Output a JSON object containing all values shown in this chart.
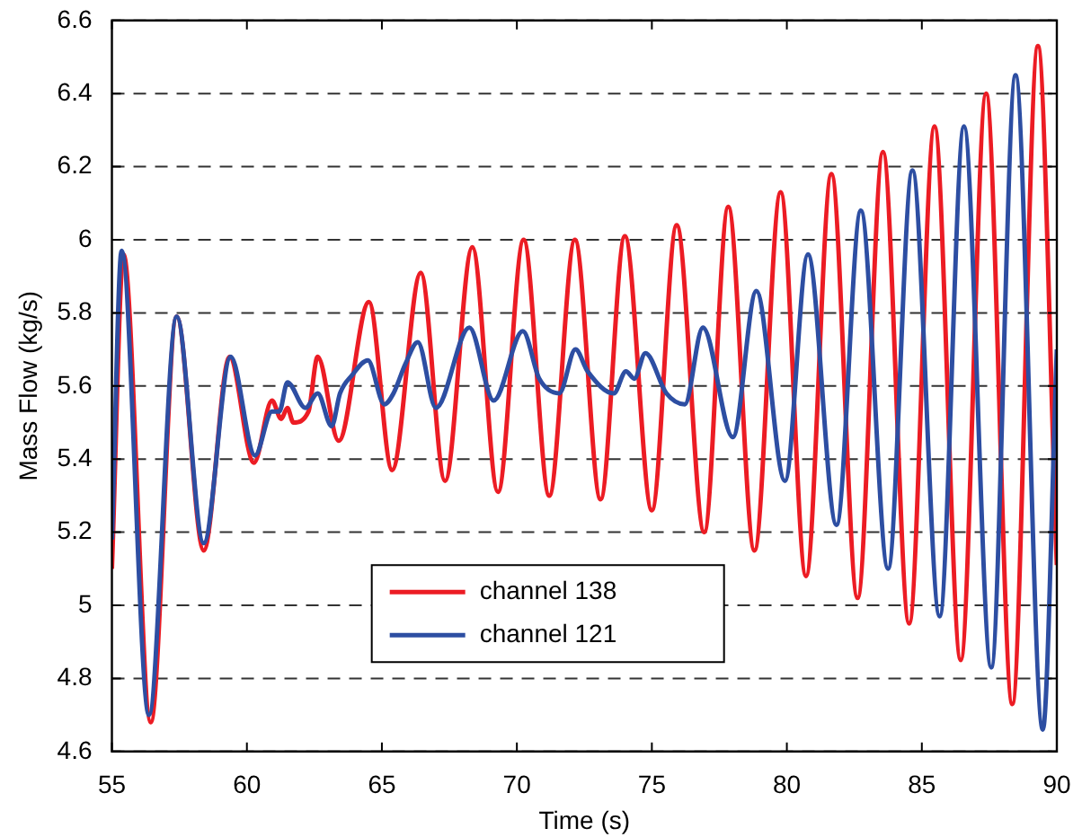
{
  "chart_data": {
    "type": "line",
    "xlabel": "Time (s)",
    "ylabel": "Mass Flow (kg/s)",
    "xlim": [
      55,
      90
    ],
    "xticks": [
      55,
      60,
      65,
      70,
      75,
      80,
      85,
      90
    ],
    "ylim": [
      4.6,
      6.6
    ],
    "yticks": [
      4.6,
      4.8,
      5,
      5.2,
      5.4,
      5.6,
      5.8,
      6,
      6.2,
      6.4,
      6.6
    ],
    "grid": "y",
    "legend": "bottom",
    "marker": "none",
    "line_style": "solid",
    "series": [
      {
        "name": "channel 138",
        "color": "#ec1c24",
        "x": [
          55,
          55.43,
          56.44,
          57.4,
          58.4,
          59.36,
          60.26,
          60.93,
          61.27,
          61.5,
          61.72,
          62.28,
          62.62,
          63.4,
          64.52,
          65.38,
          66.44,
          67.34,
          68.35,
          69.3,
          70.25,
          71.2,
          72.15,
          73.1,
          74.0,
          75.0,
          75.92,
          76.94,
          77.83,
          78.8,
          79.77,
          80.71,
          81.65,
          82.62,
          83.56,
          84.53,
          85.47,
          86.44,
          87.38,
          88.35,
          89.3,
          90
        ],
        "values": [
          5.1,
          5.96,
          4.68,
          5.79,
          5.15,
          5.68,
          5.39,
          5.56,
          5.51,
          5.54,
          5.5,
          5.53,
          5.68,
          5.45,
          5.83,
          5.37,
          5.91,
          5.34,
          5.98,
          5.31,
          6.0,
          5.3,
          6.0,
          5.29,
          6.01,
          5.26,
          6.04,
          5.2,
          6.09,
          5.15,
          6.13,
          5.08,
          6.18,
          5.02,
          6.24,
          4.95,
          6.31,
          4.85,
          6.4,
          4.73,
          6.53,
          5.11
        ]
      },
      {
        "name": "channel 121",
        "color": "#2d4ea2",
        "x": [
          55,
          55.36,
          56.37,
          57.4,
          58.4,
          59.4,
          60.3,
          60.93,
          61.2,
          61.5,
          62.17,
          62.62,
          63.14,
          63.45,
          63.9,
          64.48,
          65.09,
          65.43,
          65.87,
          66.33,
          67.0,
          68.24,
          69.14,
          70.22,
          70.83,
          71.57,
          72.17,
          72.62,
          73.59,
          74.04,
          74.35,
          74.76,
          75.54,
          76.22,
          76.89,
          78.0,
          78.87,
          79.93,
          80.78,
          81.84,
          82.74,
          83.75,
          84.65,
          85.66,
          86.56,
          87.57,
          88.47,
          89.48,
          90
        ],
        "values": [
          5.18,
          5.97,
          4.7,
          5.79,
          5.17,
          5.68,
          5.41,
          5.53,
          5.53,
          5.61,
          5.54,
          5.58,
          5.49,
          5.58,
          5.63,
          5.67,
          5.55,
          5.58,
          5.66,
          5.72,
          5.54,
          5.76,
          5.56,
          5.75,
          5.62,
          5.58,
          5.7,
          5.64,
          5.58,
          5.64,
          5.62,
          5.69,
          5.58,
          5.55,
          5.76,
          5.46,
          5.86,
          5.34,
          5.96,
          5.22,
          6.08,
          5.1,
          6.19,
          4.97,
          6.31,
          4.83,
          6.45,
          4.66,
          5.7
        ]
      }
    ]
  }
}
